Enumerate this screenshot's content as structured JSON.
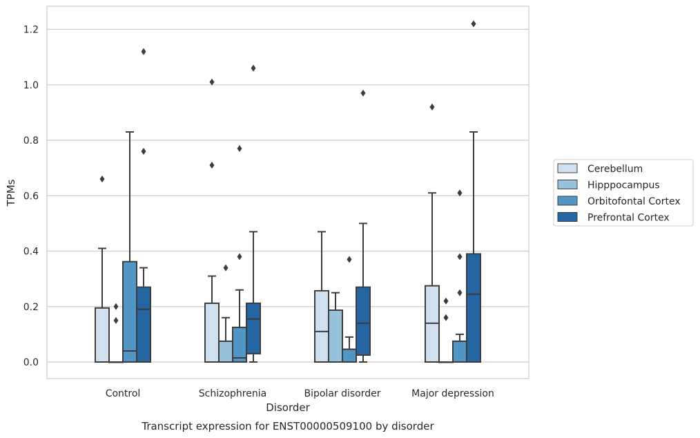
{
  "chart_data": {
    "type": "box",
    "title": "Transcript expression for ENST00000509100 by disorder",
    "xlabel": "Disorder",
    "ylabel": "TPMs",
    "ylim": [
      -0.06,
      1.28
    ],
    "yticks": [
      "0.0",
      "0.2",
      "0.4",
      "0.6",
      "0.8",
      "1.0",
      "1.2"
    ],
    "grid": "horizontal",
    "legend_position": "right",
    "categories": [
      "Control",
      "Schizophrenia",
      "Bipolar disorder",
      "Major depression"
    ],
    "series": [
      {
        "name": "Cerebellum",
        "color": "#d1e0ef",
        "boxes": [
          {
            "q1": 0,
            "median": 0,
            "q3": 0.195,
            "whislo": 0,
            "whishi": 0.41,
            "fliers": [
              0.66
            ]
          },
          {
            "q1": 0,
            "median": 0,
            "q3": 0.212,
            "whislo": 0,
            "whishi": 0.31,
            "fliers": [
              0.71,
              1.01
            ]
          },
          {
            "q1": 0,
            "median": 0.11,
            "q3": 0.257,
            "whislo": 0,
            "whishi": 0.47,
            "fliers": []
          },
          {
            "q1": 0,
            "median": 0.14,
            "q3": 0.275,
            "whislo": 0,
            "whishi": 0.61,
            "fliers": [
              0.92
            ]
          }
        ]
      },
      {
        "name": "Hipppocampus",
        "color": "#98c1dc",
        "boxes": [
          {
            "q1": 0,
            "median": 0,
            "q3": 0,
            "whislo": 0,
            "whishi": 0,
            "fliers": [
              0.15,
              0.2
            ]
          },
          {
            "q1": 0,
            "median": 0,
            "q3": 0.075,
            "whislo": 0,
            "whishi": 0.16,
            "fliers": [
              0.34
            ]
          },
          {
            "q1": 0,
            "median": 0,
            "q3": 0.187,
            "whislo": 0,
            "whishi": 0.25,
            "fliers": []
          },
          {
            "q1": 0,
            "median": 0,
            "q3": 0,
            "whislo": 0,
            "whishi": 0,
            "fliers": [
              0.16,
              0.22
            ]
          }
        ]
      },
      {
        "name": "Orbitofontal Cortex",
        "color": "#5296c6",
        "boxes": [
          {
            "q1": 0,
            "median": 0.04,
            "q3": 0.362,
            "whislo": 0,
            "whishi": 0.83,
            "fliers": []
          },
          {
            "q1": 0,
            "median": 0.015,
            "q3": 0.125,
            "whislo": 0,
            "whishi": 0.26,
            "fliers": [
              0.38,
              0.77
            ]
          },
          {
            "q1": 0,
            "median": 0,
            "q3": 0.046,
            "whislo": 0,
            "whishi": 0.09,
            "fliers": [
              0.37
            ]
          },
          {
            "q1": 0,
            "median": 0,
            "q3": 0.075,
            "whislo": 0,
            "whishi": 0.1,
            "fliers": [
              0.25,
              0.38,
              0.61
            ]
          }
        ]
      },
      {
        "name": "Prefrontal Cortex",
        "color": "#2565a2",
        "boxes": [
          {
            "q1": 0,
            "median": 0.19,
            "q3": 0.27,
            "whislo": 0,
            "whishi": 0.34,
            "fliers": [
              0.76,
              1.12
            ]
          },
          {
            "q1": 0.03,
            "median": 0.155,
            "q3": 0.212,
            "whislo": 0,
            "whishi": 0.47,
            "fliers": [
              1.06
            ]
          },
          {
            "q1": 0.025,
            "median": 0.14,
            "q3": 0.27,
            "whislo": 0,
            "whishi": 0.5,
            "fliers": [
              0.97
            ]
          },
          {
            "q1": 0,
            "median": 0.245,
            "q3": 0.39,
            "whislo": 0,
            "whishi": 0.83,
            "fliers": [
              1.22
            ]
          }
        ]
      }
    ]
  }
}
